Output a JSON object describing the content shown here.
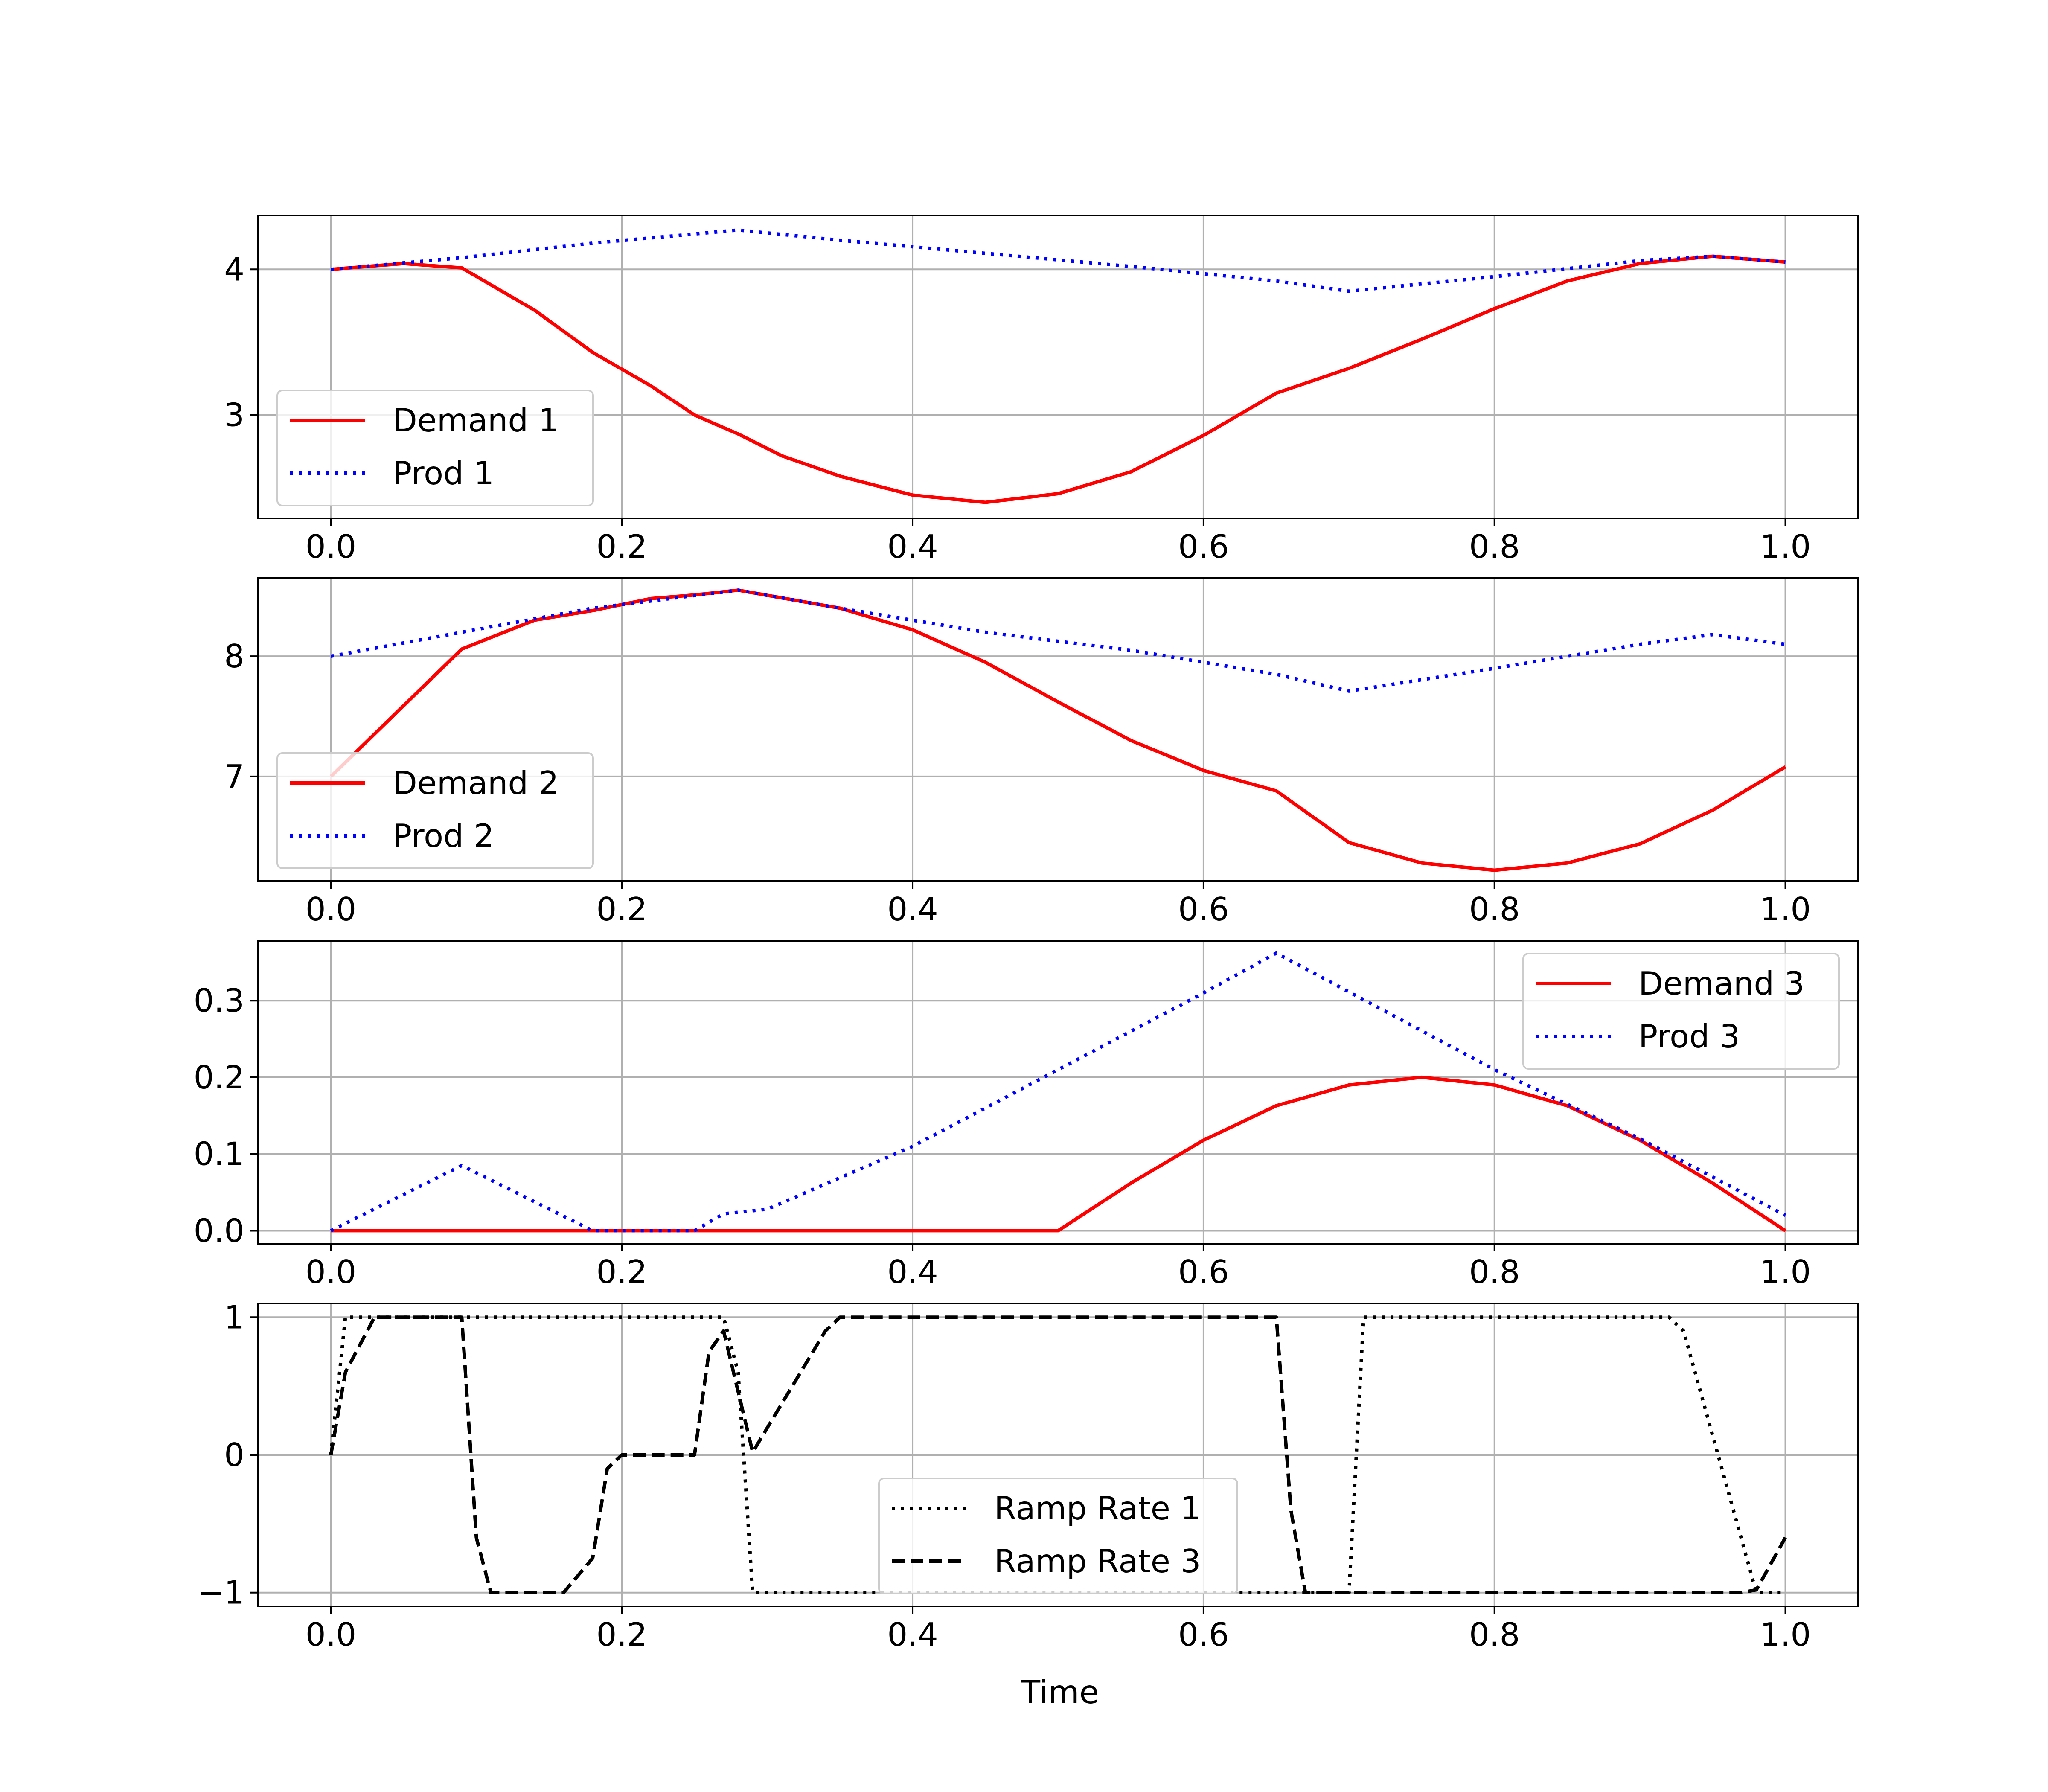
{
  "figure": {
    "xlabel": "Time"
  },
  "chart_data": [
    {
      "type": "line",
      "xlim": [
        -0.05,
        1.05
      ],
      "ylim": [
        2.29,
        4.37
      ],
      "xticks": [
        0.0,
        0.2,
        0.4,
        0.6,
        0.8,
        1.0
      ],
      "xtick_labels": [
        "0.0",
        "0.2",
        "0.4",
        "0.6",
        "0.8",
        "1.0"
      ],
      "yticks": [
        3,
        4
      ],
      "ytick_labels": [
        "3",
        "4"
      ],
      "grid": true,
      "legend_position": "lower-left",
      "series": [
        {
          "name": "Demand 1",
          "color": "#ff0000",
          "style": "solid",
          "x": [
            0.0,
            0.05,
            0.09,
            0.14,
            0.18,
            0.22,
            0.25,
            0.28,
            0.31,
            0.35,
            0.4,
            0.45,
            0.5,
            0.55,
            0.6,
            0.65,
            0.7,
            0.75,
            0.8,
            0.85,
            0.9,
            0.95,
            1.0
          ],
          "y": [
            4.0,
            4.04,
            4.01,
            3.72,
            3.43,
            3.2,
            3.0,
            2.87,
            2.72,
            2.58,
            2.45,
            2.4,
            2.46,
            2.61,
            2.86,
            3.15,
            3.32,
            3.52,
            3.73,
            3.92,
            4.04,
            4.09,
            4.05
          ]
        },
        {
          "name": "Prod 1",
          "color": "#0000ff",
          "style": "dotted",
          "x": [
            0.0,
            0.09,
            0.18,
            0.28,
            0.35,
            0.45,
            0.55,
            0.65,
            0.7,
            0.8,
            0.9,
            0.95,
            1.0
          ],
          "y": [
            4.0,
            4.08,
            4.18,
            4.27,
            4.2,
            4.11,
            4.02,
            3.92,
            3.85,
            3.95,
            4.06,
            4.09,
            4.05
          ]
        }
      ]
    },
    {
      "type": "line",
      "xlim": [
        -0.05,
        1.05
      ],
      "ylim": [
        6.13,
        8.65
      ],
      "xticks": [
        0.0,
        0.2,
        0.4,
        0.6,
        0.8,
        1.0
      ],
      "xtick_labels": [
        "0.0",
        "0.2",
        "0.4",
        "0.6",
        "0.8",
        "1.0"
      ],
      "yticks": [
        7,
        8
      ],
      "ytick_labels": [
        "7",
        "8"
      ],
      "grid": true,
      "legend_position": "lower-left",
      "series": [
        {
          "name": "Demand 2",
          "color": "#ff0000",
          "style": "solid",
          "x": [
            0.0,
            0.09,
            0.14,
            0.18,
            0.22,
            0.25,
            0.28,
            0.35,
            0.4,
            0.45,
            0.5,
            0.55,
            0.6,
            0.65,
            0.7,
            0.75,
            0.8,
            0.85,
            0.9,
            0.95,
            1.0
          ],
          "y": [
            7.0,
            8.06,
            8.3,
            8.38,
            8.48,
            8.51,
            8.55,
            8.4,
            8.22,
            7.95,
            7.62,
            7.3,
            7.05,
            6.88,
            6.45,
            6.28,
            6.22,
            6.28,
            6.44,
            6.72,
            7.08
          ]
        },
        {
          "name": "Prod 2",
          "color": "#0000ff",
          "style": "dotted",
          "x": [
            0.0,
            0.09,
            0.18,
            0.28,
            0.35,
            0.45,
            0.55,
            0.65,
            0.7,
            0.8,
            0.9,
            0.95,
            1.0
          ],
          "y": [
            8.0,
            8.2,
            8.4,
            8.55,
            8.4,
            8.2,
            8.05,
            7.85,
            7.71,
            7.9,
            8.1,
            8.18,
            8.1
          ]
        }
      ]
    },
    {
      "type": "line",
      "xlim": [
        -0.05,
        1.05
      ],
      "ylim": [
        -0.017,
        0.378
      ],
      "xticks": [
        0.0,
        0.2,
        0.4,
        0.6,
        0.8,
        1.0
      ],
      "xtick_labels": [
        "0.0",
        "0.2",
        "0.4",
        "0.6",
        "0.8",
        "1.0"
      ],
      "yticks": [
        0.0,
        0.1,
        0.2,
        0.3
      ],
      "ytick_labels": [
        "0.0",
        "0.1",
        "0.2",
        "0.3"
      ],
      "grid": true,
      "legend_position": "upper-right",
      "series": [
        {
          "name": "Demand 3",
          "color": "#ff0000",
          "style": "solid",
          "x": [
            0.0,
            0.5,
            0.55,
            0.6,
            0.65,
            0.7,
            0.75,
            0.8,
            0.85,
            0.9,
            0.95,
            1.0
          ],
          "y": [
            0.0,
            0.0,
            0.062,
            0.118,
            0.163,
            0.19,
            0.2,
            0.19,
            0.163,
            0.118,
            0.062,
            0.0
          ]
        },
        {
          "name": "Prod 3",
          "color": "#0000ff",
          "style": "dotted",
          "x": [
            0.0,
            0.09,
            0.18,
            0.25,
            0.27,
            0.3,
            0.4,
            0.5,
            0.6,
            0.65,
            0.8,
            0.9,
            1.0
          ],
          "y": [
            0.0,
            0.085,
            0.0,
            0.0,
            0.022,
            0.028,
            0.11,
            0.21,
            0.31,
            0.362,
            0.21,
            0.12,
            0.02
          ]
        }
      ]
    },
    {
      "type": "line",
      "xlim": [
        -0.05,
        1.05
      ],
      "ylim": [
        -1.1,
        1.1
      ],
      "xticks": [
        0.0,
        0.2,
        0.4,
        0.6,
        0.8,
        1.0
      ],
      "xtick_labels": [
        "0.0",
        "0.2",
        "0.4",
        "0.6",
        "0.8",
        "1.0"
      ],
      "yticks": [
        -1,
        0,
        1
      ],
      "ytick_labels": [
        "−1",
        "0",
        "1"
      ],
      "grid": true,
      "legend_position": "lower-center",
      "series": [
        {
          "name": "Ramp Rate 1",
          "color": "#000000",
          "style": "dotted",
          "x": [
            0.0,
            0.01,
            0.02,
            0.27,
            0.28,
            0.29,
            0.7,
            0.71,
            0.92,
            0.93,
            0.98,
            1.0
          ],
          "y": [
            0.0,
            1.0,
            1.0,
            1.0,
            0.6,
            -1.0,
            -1.0,
            1.0,
            1.0,
            0.9,
            -1.0,
            -1.0
          ]
        },
        {
          "name": "Ramp Rate 3",
          "color": "#000000",
          "style": "dashed",
          "x": [
            0.0,
            0.01,
            0.02,
            0.03,
            0.09,
            0.1,
            0.11,
            0.16,
            0.18,
            0.19,
            0.2,
            0.25,
            0.26,
            0.27,
            0.29,
            0.34,
            0.35,
            0.65,
            0.66,
            0.67,
            0.97,
            0.98,
            1.0
          ],
          "y": [
            0.0,
            0.6,
            0.8,
            1.0,
            1.0,
            -0.6,
            -1.0,
            -1.0,
            -0.75,
            -0.1,
            0.0,
            0.0,
            0.75,
            0.9,
            0.02,
            0.9,
            1.0,
            1.0,
            -0.4,
            -1.0,
            -1.0,
            -0.98,
            -0.6
          ]
        }
      ]
    }
  ]
}
